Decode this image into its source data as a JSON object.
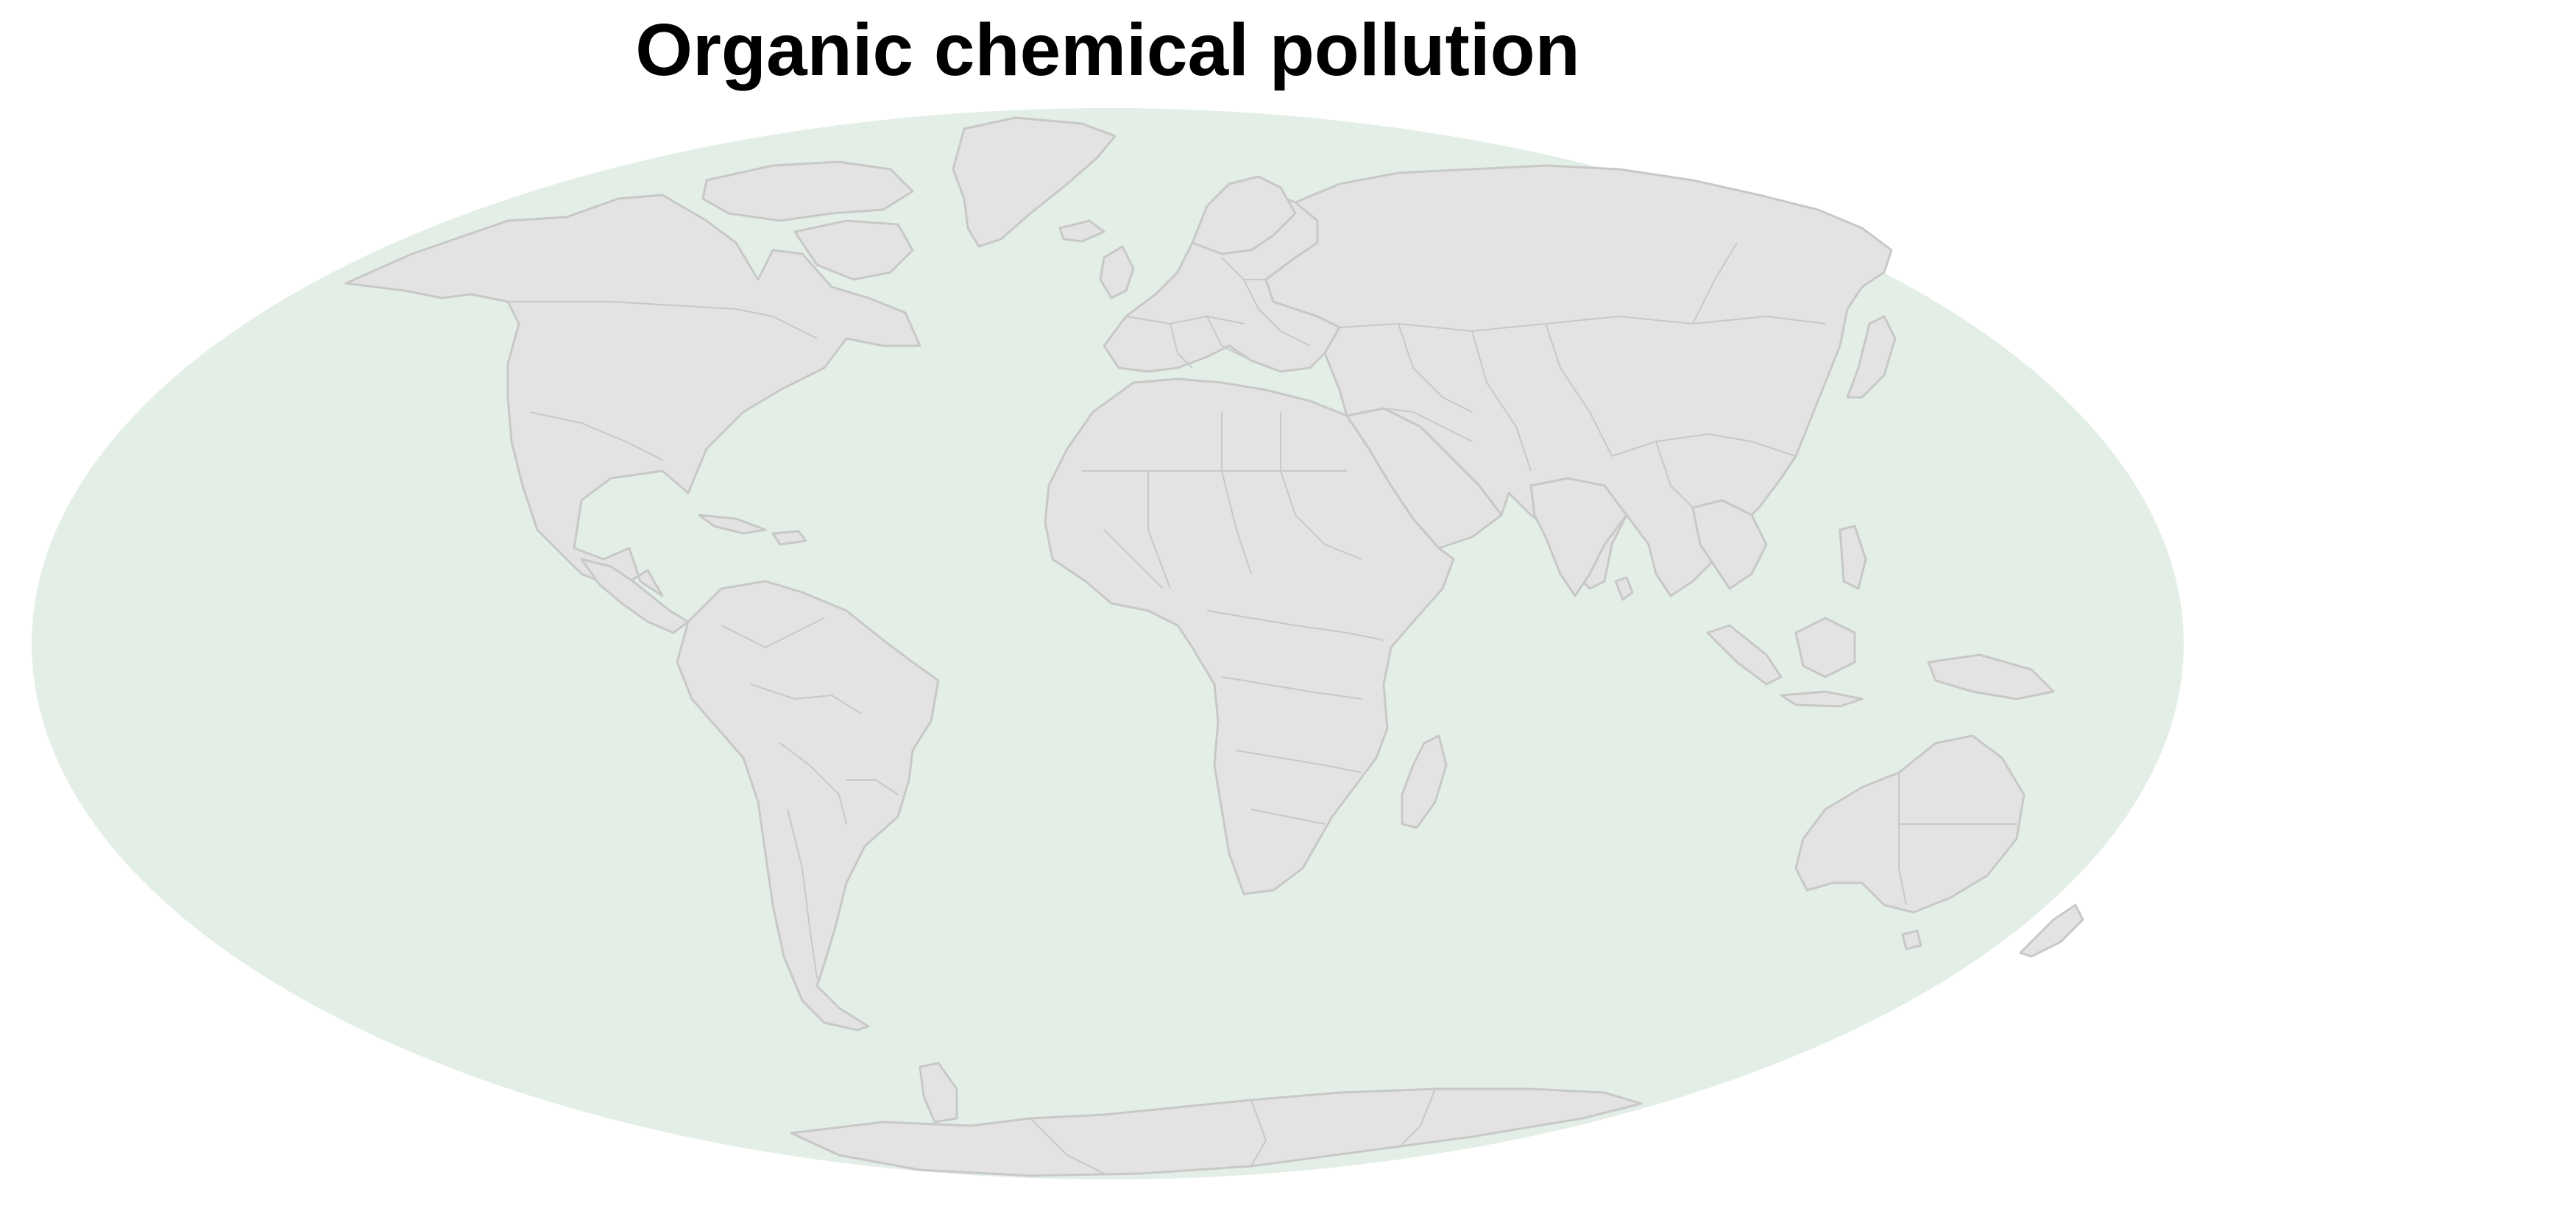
{
  "title": "Organic chemical pollution",
  "map": {
    "projection": "mollweide",
    "ocean_color": "#e2eee6",
    "land_color": "#e3e3e3",
    "outline_color": "#c8c8c8",
    "background_color": "#ffffff",
    "legend": "none",
    "country_borders": "shown"
  }
}
